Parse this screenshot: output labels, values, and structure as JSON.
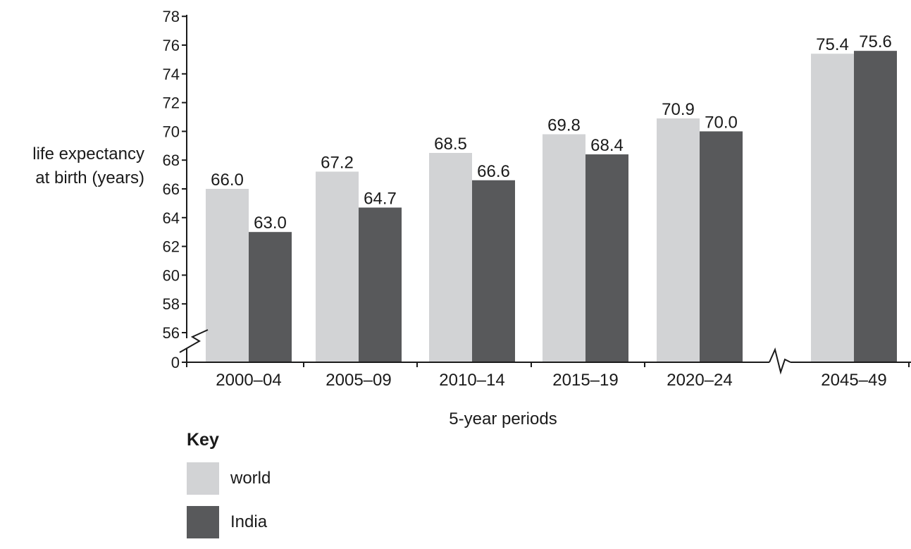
{
  "chart_data": {
    "type": "bar",
    "ylabel": [
      "life expectancy",
      "at birth (years)"
    ],
    "xlabel": "5-year periods",
    "categories": [
      "2000–04",
      "2005–09",
      "2010–14",
      "2015–19",
      "2020–24",
      "2045–49"
    ],
    "series": [
      {
        "name": "world",
        "color": "#d2d3d5",
        "values": [
          66.0,
          67.2,
          68.5,
          69.8,
          70.9,
          75.4
        ],
        "labels": [
          "66.0",
          "67.2",
          "68.5",
          "69.8",
          "70.9",
          "75.4"
        ]
      },
      {
        "name": "India",
        "color": "#58595b",
        "values": [
          63.0,
          64.7,
          66.6,
          68.4,
          70.0,
          75.6
        ],
        "labels": [
          "63.0",
          "64.7",
          "66.6",
          "68.4",
          "70.0",
          "75.6"
        ]
      }
    ],
    "yticks": [
      "0",
      "56",
      "58",
      "60",
      "62",
      "64",
      "66",
      "68",
      "70",
      "72",
      "74",
      "76",
      "78"
    ],
    "ylim": [
      54,
      78
    ],
    "y_axis_break": true,
    "x_axis_break_before": "2045–49",
    "legend": {
      "title": "Key",
      "placement": "bottom-left"
    },
    "grid": false
  }
}
